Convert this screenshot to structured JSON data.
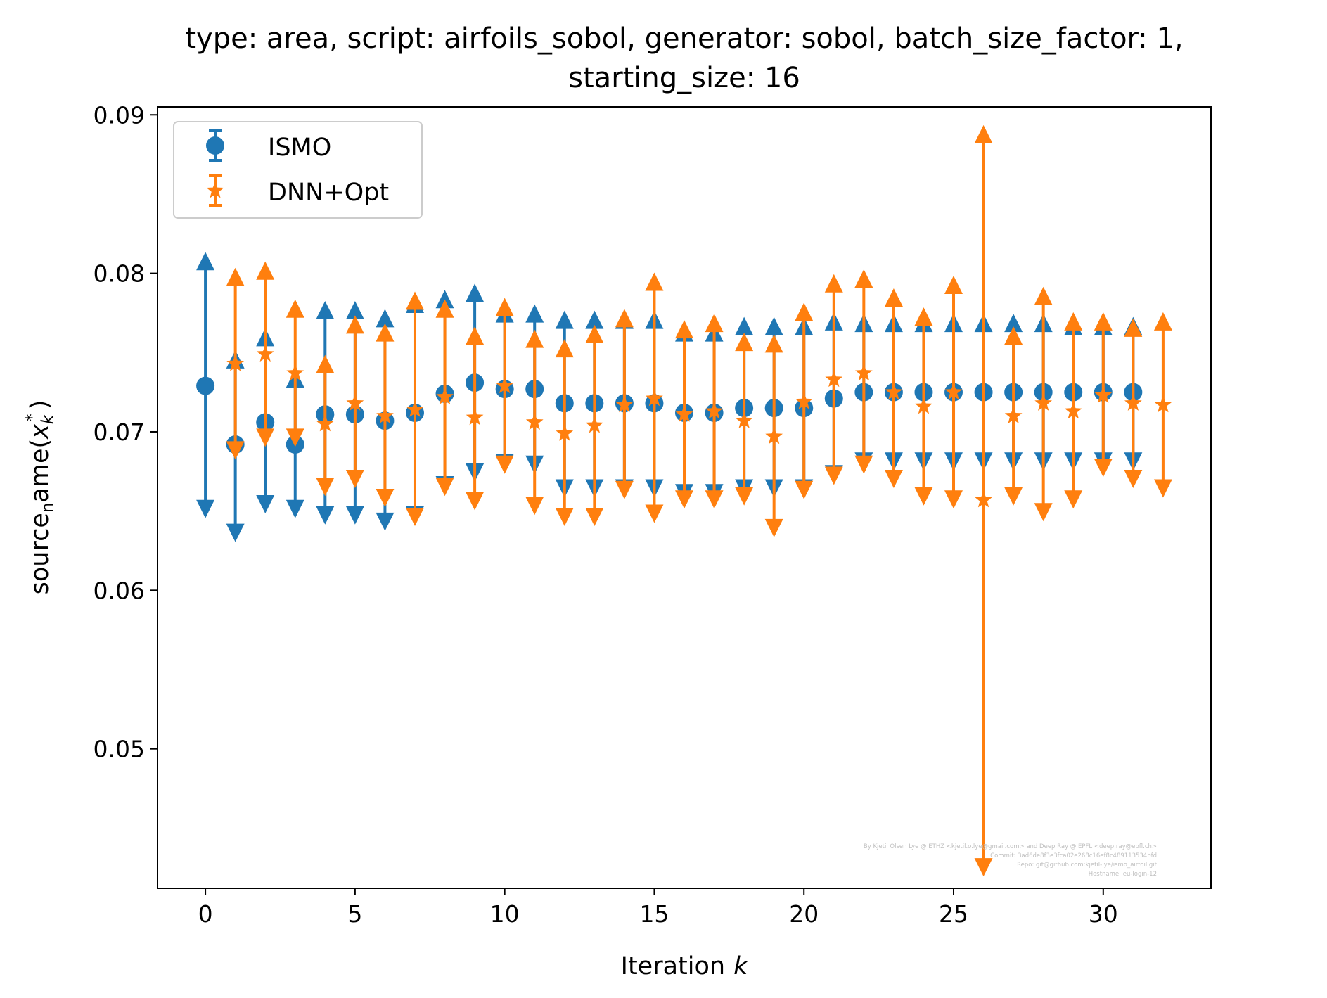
{
  "chart_data": {
    "type": "scatter",
    "title_line1": "type: area, script: airfoils_sobol, generator: sobol, batch_size_factor: 1,",
    "title_line2": "starting_size: 16",
    "xlabel": "Iteration",
    "xlabel_var": "k",
    "ylabel": "source",
    "ylabel_sub": "n",
    "ylabel_rest": "ame(",
    "ylabel_x": "x",
    "ylabel_xsub": "k",
    "ylabel_xsup": "*",
    "ylabel_close": ")",
    "xlim": [
      -1.6,
      33.6
    ],
    "ylim": [
      0.0412,
      0.0905
    ],
    "xticks": [
      0,
      5,
      10,
      15,
      20,
      25,
      30
    ],
    "xtick_labels": [
      "0",
      "5",
      "10",
      "15",
      "20",
      "25",
      "30"
    ],
    "yticks": [
      0.05,
      0.06,
      0.07,
      0.08,
      0.09
    ],
    "ytick_labels": [
      "0.05",
      "0.06",
      "0.07",
      "0.08",
      "0.09"
    ],
    "legend_position": "top-left",
    "series": [
      {
        "name": "ISMO",
        "color": "#1f77b4",
        "marker": "circle",
        "x": [
          0,
          1,
          2,
          3,
          4,
          5,
          6,
          7,
          8,
          9,
          10,
          11,
          12,
          13,
          14,
          15,
          16,
          17,
          18,
          19,
          20,
          21,
          22,
          23,
          24,
          25,
          26,
          27,
          28,
          29,
          30,
          31
        ],
        "y": [
          0.0729,
          0.0692,
          0.0706,
          0.0692,
          0.0711,
          0.0711,
          0.0707,
          0.0712,
          0.0724,
          0.0731,
          0.0727,
          0.0727,
          0.0718,
          0.0718,
          0.0718,
          0.0718,
          0.0712,
          0.0712,
          0.0715,
          0.0715,
          0.0715,
          0.0721,
          0.0725,
          0.0725,
          0.0725,
          0.0725,
          0.0725,
          0.0725,
          0.0725,
          0.0725,
          0.0725,
          0.0725
        ],
        "upper": [
          0.0806,
          0.0744,
          0.0758,
          0.0732,
          0.0775,
          0.0775,
          0.077,
          0.0779,
          0.0782,
          0.0786,
          0.0773,
          0.0773,
          0.0769,
          0.0769,
          0.0769,
          0.0769,
          0.0761,
          0.0761,
          0.0765,
          0.0765,
          0.0765,
          0.0768,
          0.0767,
          0.0767,
          0.0767,
          0.0767,
          0.0767,
          0.0767,
          0.0767,
          0.0765,
          0.0765,
          0.0765
        ],
        "lower": [
          0.0653,
          0.0638,
          0.0656,
          0.0653,
          0.0649,
          0.0649,
          0.0645,
          0.0649,
          0.0668,
          0.0676,
          0.0682,
          0.0681,
          0.0666,
          0.0666,
          0.0666,
          0.0666,
          0.0663,
          0.0663,
          0.0666,
          0.0666,
          0.0666,
          0.0675,
          0.0683,
          0.0683,
          0.0683,
          0.0683,
          0.0683,
          0.0683,
          0.0683,
          0.0683,
          0.0683,
          0.0683
        ]
      },
      {
        "name": "DNN+Opt",
        "color": "#ff7f0e",
        "marker": "star",
        "x": [
          1,
          2,
          3,
          4,
          5,
          6,
          7,
          8,
          9,
          10,
          11,
          12,
          13,
          14,
          15,
          16,
          17,
          18,
          19,
          20,
          21,
          22,
          23,
          24,
          25,
          26,
          27,
          28,
          29,
          30,
          31,
          32
        ],
        "y": [
          0.0743,
          0.0749,
          0.0737,
          0.0705,
          0.0718,
          0.071,
          0.0714,
          0.0722,
          0.0709,
          0.0729,
          0.0706,
          0.0699,
          0.0704,
          0.0717,
          0.0721,
          0.0711,
          0.0713,
          0.0707,
          0.0697,
          0.0719,
          0.0733,
          0.0737,
          0.0725,
          0.0716,
          0.0725,
          0.0657,
          0.071,
          0.0718,
          0.0713,
          0.0723,
          0.0718,
          0.0717
        ],
        "upper": [
          0.0796,
          0.08,
          0.0776,
          0.0741,
          0.0766,
          0.0761,
          0.0781,
          0.0776,
          0.0759,
          0.0777,
          0.0757,
          0.0751,
          0.076,
          0.077,
          0.0793,
          0.0763,
          0.0767,
          0.0755,
          0.0754,
          0.0774,
          0.0792,
          0.0795,
          0.0783,
          0.0771,
          0.0791,
          0.0886,
          0.0759,
          0.0784,
          0.0768,
          0.0768,
          0.0764,
          0.0768
        ],
        "lower": [
          0.069,
          0.0698,
          0.0698,
          0.0667,
          0.0672,
          0.066,
          0.0648,
          0.0667,
          0.0658,
          0.0681,
          0.0655,
          0.0648,
          0.0648,
          0.0665,
          0.065,
          0.0659,
          0.0659,
          0.0661,
          0.0641,
          0.0665,
          0.0674,
          0.0681,
          0.0672,
          0.0661,
          0.0659,
          0.0427,
          0.0661,
          0.0651,
          0.0659,
          0.0679,
          0.0672,
          0.0666
        ]
      }
    ],
    "credits": [
      "By Kjetil Olsen Lye @ ETHZ <kjetil.o.lye@gmail.com> and Deep Ray @ EPFL <deep.ray@epfl.ch>",
      "Commit: 3ad6de8f3e3fca02e268c16ef8c489113534bfd",
      "Repo: git@github.com:kjetil-lye/ismo_airfoil.git",
      "Hostname: eu-login-12"
    ]
  }
}
